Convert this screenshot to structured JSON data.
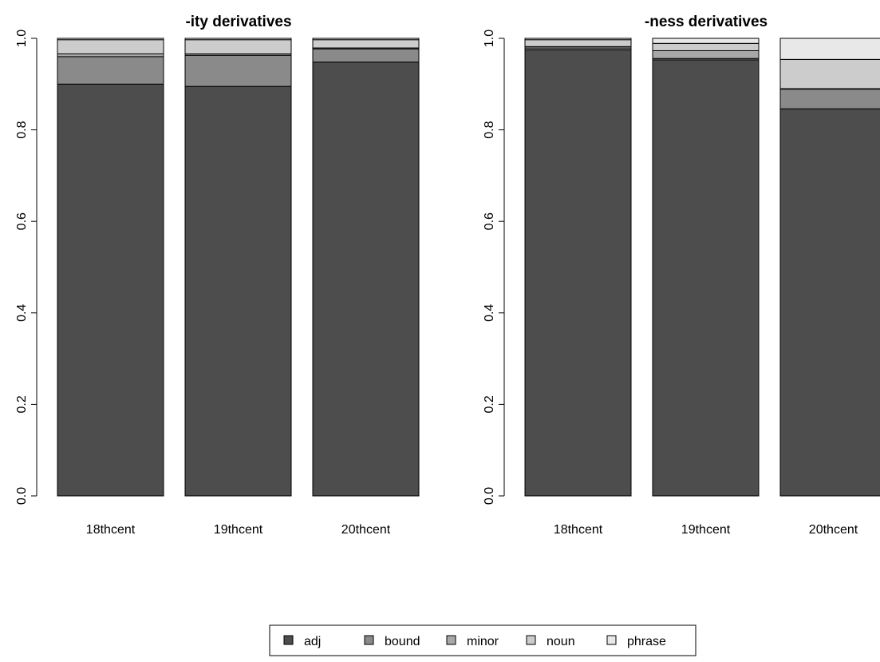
{
  "colors": {
    "adj": "#4d4d4d",
    "bound": "#8a8a8a",
    "minor": "#a8a8a8",
    "noun": "#cccccc",
    "phrase": "#e8e8e8",
    "stroke": "#000000"
  },
  "legend": {
    "items": [
      {
        "key": "adj",
        "label": "adj"
      },
      {
        "key": "bound",
        "label": "bound"
      },
      {
        "key": "minor",
        "label": "minor"
      },
      {
        "key": "noun",
        "label": "noun"
      },
      {
        "key": "phrase",
        "label": "phrase"
      }
    ]
  },
  "chart_data": [
    {
      "type": "bar",
      "stacked": true,
      "title": "-ity derivatives",
      "xlabel": "",
      "ylabel": "",
      "ylim": [
        0,
        1
      ],
      "yticks": [
        0.0,
        0.2,
        0.4,
        0.6,
        0.8,
        1.0
      ],
      "ytick_labels": [
        "0.0",
        "0.2",
        "0.4",
        "0.6",
        "0.8",
        "1.0"
      ],
      "categories": [
        "18thcent",
        "19thcent",
        "20thcent"
      ],
      "series": [
        {
          "name": "adj",
          "values": [
            0.9,
            0.895,
            0.948
          ]
        },
        {
          "name": "bound",
          "values": [
            0.06,
            0.068,
            0.029
          ]
        },
        {
          "name": "minor",
          "values": [
            0.006,
            0.003,
            0.002
          ]
        },
        {
          "name": "noun",
          "values": [
            0.031,
            0.031,
            0.018
          ]
        },
        {
          "name": "phrase",
          "values": [
            0.003,
            0.003,
            0.003
          ]
        }
      ]
    },
    {
      "type": "bar",
      "stacked": true,
      "title": "-ness derivatives",
      "xlabel": "",
      "ylabel": "",
      "ylim": [
        0,
        1
      ],
      "yticks": [
        0.0,
        0.2,
        0.4,
        0.6,
        0.8,
        1.0
      ],
      "ytick_labels": [
        "0.0",
        "0.2",
        "0.4",
        "0.6",
        "0.8",
        "1.0"
      ],
      "categories": [
        "18thcent",
        "19thcent",
        "20thcent"
      ],
      "series": [
        {
          "name": "adj",
          "values": [
            0.975,
            0.953,
            0.846
          ]
        },
        {
          "name": "bound",
          "values": [
            0.004,
            0.003,
            0.043
          ]
        },
        {
          "name": "minor",
          "values": [
            0.003,
            0.017,
            0.001
          ]
        },
        {
          "name": "noun",
          "values": [
            0.015,
            0.016,
            0.064
          ]
        },
        {
          "name": "phrase",
          "values": [
            0.003,
            0.011,
            0.046
          ]
        }
      ]
    }
  ]
}
